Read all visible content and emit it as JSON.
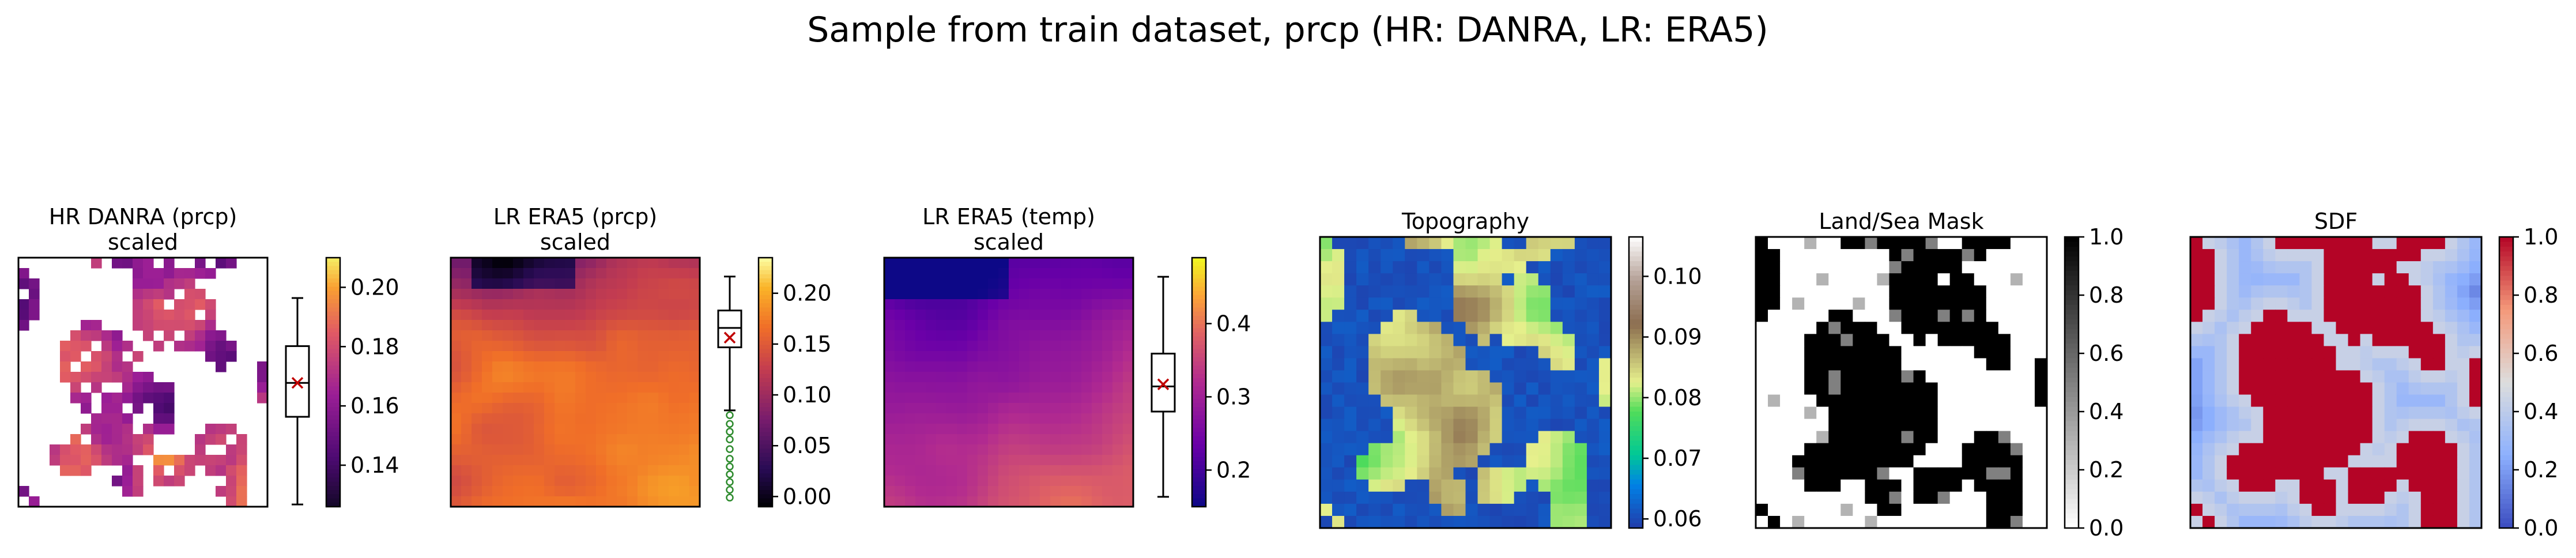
{
  "figure": {
    "suptitle": "Sample from train dataset, prcp (HR: DANRA, LR: ERA5)"
  },
  "chart_data": [
    {
      "type": "heatmap",
      "title_lines": [
        "HR DANRA (prcp)",
        "scaled"
      ],
      "colormap": "plasma-dark",
      "colorbar": {
        "ticks": [
          0.14,
          0.16,
          0.18,
          0.2
        ],
        "tick_labels": [
          "0.14",
          "0.16",
          "0.18",
          "0.20"
        ],
        "range": [
          0.126,
          0.21
        ]
      },
      "boxplot": {
        "whisker_low": 0.127,
        "q1": 0.158,
        "median": 0.17,
        "mean": 0.17,
        "q3": 0.183,
        "whisker_high": 0.2,
        "range": [
          0.126,
          0.21
        ]
      },
      "mask": "land"
    },
    {
      "type": "heatmap",
      "title_lines": [
        "LR ERA5 (prcp)",
        "scaled"
      ],
      "colormap": "inferno",
      "colorbar": {
        "ticks": [
          0.0,
          0.05,
          0.1,
          0.15,
          0.2
        ],
        "tick_labels": [
          "0.00",
          "0.05",
          "0.10",
          "0.15",
          "0.20"
        ],
        "range": [
          -0.01,
          0.235
        ]
      },
      "boxplot": {
        "whisker_low": 0.09,
        "q1": 0.155,
        "median": 0.175,
        "mean": 0.165,
        "q3": 0.193,
        "whisker_high": 0.228,
        "range": [
          -0.01,
          0.235
        ],
        "outliers": [
          0.0,
          0.008,
          0.016,
          0.024,
          0.032,
          0.04,
          0.05,
          0.06,
          0.068,
          0.076,
          0.085
        ]
      }
    },
    {
      "type": "heatmap",
      "title_lines": [
        "LR ERA5 (temp)",
        "scaled"
      ],
      "colormap": "plasma",
      "colorbar": {
        "ticks": [
          0.2,
          0.3,
          0.4
        ],
        "tick_labels": [
          "0.2",
          "0.3",
          "0.4"
        ],
        "range": [
          0.15,
          0.49
        ]
      },
      "boxplot": {
        "whisker_low": 0.165,
        "q1": 0.287,
        "median": 0.323,
        "mean": 0.326,
        "q3": 0.37,
        "whisker_high": 0.48,
        "range": [
          0.15,
          0.49
        ]
      }
    },
    {
      "type": "heatmap",
      "title_lines": [
        "Topography"
      ],
      "colormap": "terrain",
      "colorbar": {
        "ticks": [
          0.06,
          0.07,
          0.08,
          0.09,
          0.1
        ],
        "tick_labels": [
          "0.06",
          "0.07",
          "0.08",
          "0.09",
          "0.10"
        ],
        "range": [
          0.0585,
          0.1065
        ]
      }
    },
    {
      "type": "heatmap",
      "title_lines": [
        "Land/Sea Mask"
      ],
      "colormap": "binary",
      "colorbar": {
        "ticks": [
          0.0,
          0.2,
          0.4,
          0.6,
          0.8,
          1.0
        ],
        "tick_labels": [
          "0.0",
          "0.2",
          "0.4",
          "0.6",
          "0.8",
          "1.0"
        ],
        "range": [
          0.0,
          1.0
        ]
      }
    },
    {
      "type": "heatmap",
      "title_lines": [
        "SDF"
      ],
      "colormap": "coolwarm",
      "colorbar": {
        "ticks": [
          0.0,
          0.2,
          0.4,
          0.6,
          0.8,
          1.0
        ],
        "tick_labels": [
          "0.0",
          "0.2",
          "0.4",
          "0.6",
          "0.8",
          "1.0"
        ],
        "range": [
          0.0,
          1.0
        ]
      }
    }
  ]
}
